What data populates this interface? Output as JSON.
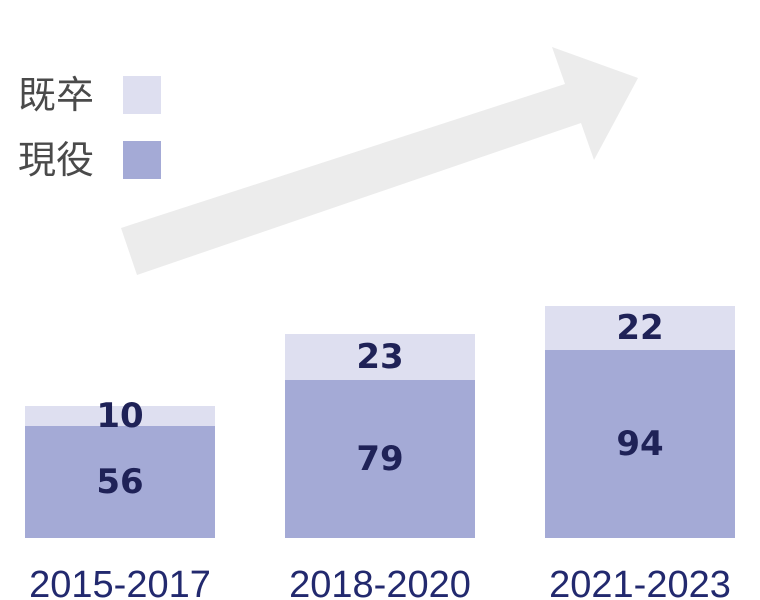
{
  "chart_data": {
    "type": "bar",
    "stacked": true,
    "categories": [
      "2015-2017",
      "2018-2020",
      "2021-2023"
    ],
    "series": [
      {
        "name": "現役",
        "values": [
          56,
          79,
          94
        ],
        "color": "#a4aad6"
      },
      {
        "name": "既卒",
        "values": [
          10,
          23,
          22
        ],
        "color": "#dedff0"
      }
    ],
    "legend": {
      "placement": "top-left",
      "order": [
        "既卒",
        "現役"
      ]
    },
    "decoration": {
      "arrow": "upward-trend-arrow",
      "arrow_color": "#ececec"
    },
    "value_label_color": "#1f2257",
    "category_label_color": "#22296e",
    "title": "",
    "xlabel": "",
    "ylabel": "",
    "grid": false
  }
}
